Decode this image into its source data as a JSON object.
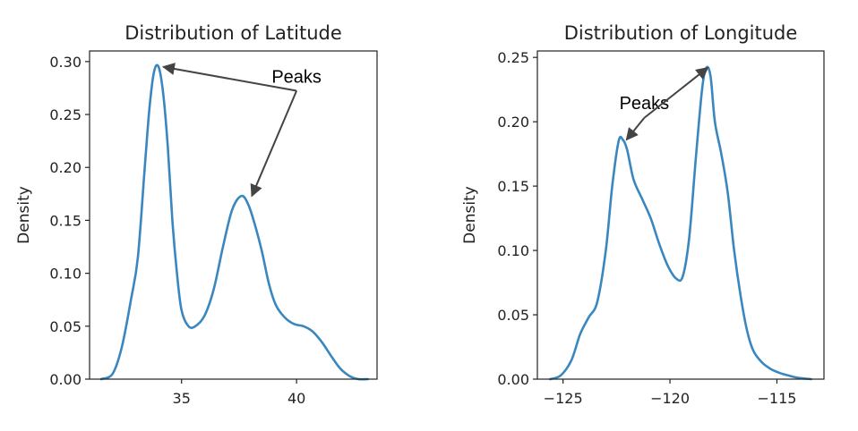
{
  "chart_data": [
    {
      "type": "line",
      "title": "Distribution of Latitude",
      "xlabel": "",
      "ylabel": "Density",
      "xlim": [
        31.0,
        43.5
      ],
      "ylim": [
        0.0,
        0.31
      ],
      "xticks": [
        35,
        40
      ],
      "xtick_labels": [
        "35",
        "40"
      ],
      "yticks": [
        0.0,
        0.05,
        0.1,
        0.15,
        0.2,
        0.25,
        0.3
      ],
      "ytick_labels": [
        "0.00",
        "0.05",
        "0.10",
        "0.15",
        "0.20",
        "0.25",
        "0.30"
      ],
      "grid": false,
      "color": "#3a87c0",
      "series": [
        {
          "x": [
            31.5,
            32.0,
            32.4,
            32.8,
            33.1,
            33.4,
            33.6,
            33.8,
            34.0,
            34.2,
            34.4,
            34.6,
            34.8,
            35.0,
            35.3,
            35.6,
            36.0,
            36.4,
            36.8,
            37.2,
            37.6,
            37.9,
            38.2,
            38.5,
            38.8,
            39.1,
            39.5,
            39.9,
            40.3,
            40.7,
            41.1,
            41.5,
            41.9,
            42.3,
            42.7,
            43.1
          ],
          "y": [
            0.0,
            0.005,
            0.03,
            0.075,
            0.115,
            0.2,
            0.255,
            0.29,
            0.295,
            0.27,
            0.22,
            0.15,
            0.1,
            0.065,
            0.05,
            0.05,
            0.06,
            0.085,
            0.125,
            0.16,
            0.173,
            0.165,
            0.145,
            0.12,
            0.09,
            0.07,
            0.058,
            0.052,
            0.05,
            0.045,
            0.035,
            0.022,
            0.01,
            0.003,
            0.0,
            0.0
          ]
        }
      ],
      "annotations": [
        {
          "text": "Peaks",
          "label_x": 40.0,
          "label_y": 0.28,
          "targets": [
            [
              34.05,
              0.295
            ],
            [
              37.9,
              0.173
            ]
          ]
        }
      ]
    },
    {
      "type": "line",
      "title": "Distribution of Longitude",
      "xlabel": "",
      "ylabel": "Density",
      "xlim": [
        -126.2,
        -112.8
      ],
      "ylim": [
        0.0,
        0.255
      ],
      "xticks": [
        -125,
        -120,
        -115
      ],
      "xtick_labels": [
        "−125",
        "−120",
        "−115"
      ],
      "yticks": [
        0.0,
        0.05,
        0.1,
        0.15,
        0.2,
        0.25
      ],
      "ytick_labels": [
        "0.00",
        "0.05",
        "0.10",
        "0.15",
        "0.20",
        "0.25"
      ],
      "grid": false,
      "color": "#3a87c0",
      "series": [
        {
          "x": [
            -125.6,
            -125.1,
            -124.6,
            -124.2,
            -123.8,
            -123.4,
            -123.0,
            -122.7,
            -122.4,
            -122.2,
            -122.0,
            -121.7,
            -121.3,
            -120.9,
            -120.5,
            -120.1,
            -119.7,
            -119.4,
            -119.1,
            -118.8,
            -118.5,
            -118.3,
            -118.1,
            -117.9,
            -117.6,
            -117.3,
            -117.0,
            -116.7,
            -116.4,
            -116.1,
            -115.7,
            -115.3,
            -114.9,
            -114.5,
            -114.0,
            -113.4
          ],
          "y": [
            0.0,
            0.003,
            0.015,
            0.035,
            0.048,
            0.06,
            0.1,
            0.15,
            0.185,
            0.186,
            0.178,
            0.155,
            0.14,
            0.125,
            0.105,
            0.088,
            0.078,
            0.08,
            0.11,
            0.17,
            0.225,
            0.242,
            0.235,
            0.2,
            0.175,
            0.145,
            0.1,
            0.065,
            0.038,
            0.022,
            0.013,
            0.008,
            0.005,
            0.003,
            0.001,
            0.0
          ]
        }
      ],
      "annotations": [
        {
          "text": "Peaks",
          "label_x": -121.2,
          "label_y": 0.21,
          "targets": [
            [
              -122.2,
              0.186
            ],
            [
              -118.4,
              0.242
            ]
          ]
        }
      ]
    }
  ]
}
